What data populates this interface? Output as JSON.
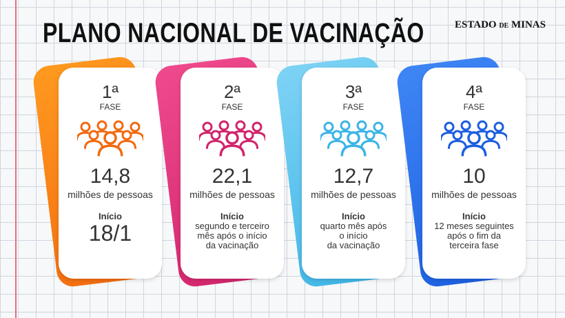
{
  "header": {
    "title": "PLANO NACIONAL DE VACINAÇÃO",
    "brand_main": "ESTADO",
    "brand_small": "DE",
    "brand_end": "MINAS"
  },
  "phases": [
    {
      "ordinal": "1ª",
      "label": "FASE",
      "amount": "14,8",
      "unit": "milhões de pessoas",
      "start_label": "Início",
      "start_text": [
        "18/1"
      ],
      "color": "#f26a10",
      "color2": "#ff9a1f"
    },
    {
      "ordinal": "2ª",
      "label": "FASE",
      "amount": "22,1",
      "unit": "milhões de pessoas",
      "start_label": "Início",
      "start_text": [
        "segundo e terceiro",
        "mês após o início",
        "da vacinação"
      ],
      "color": "#d1246b",
      "color2": "#f04a8e"
    },
    {
      "ordinal": "3ª",
      "label": "FASE",
      "amount": "12,7",
      "unit": "milhões de pessoas",
      "start_label": "Início",
      "start_text": [
        "quarto mês após",
        "o início",
        "da vacinação"
      ],
      "color": "#3cb4e6",
      "color2": "#7fd3f5"
    },
    {
      "ordinal": "4ª",
      "label": "FASE",
      "amount": "10",
      "unit": "milhões de pessoas",
      "start_label": "Início",
      "start_text": [
        "12 meses seguintes",
        "após o fim da",
        "terceira fase"
      ],
      "color": "#1c5ee0",
      "color2": "#3f86f5"
    }
  ]
}
